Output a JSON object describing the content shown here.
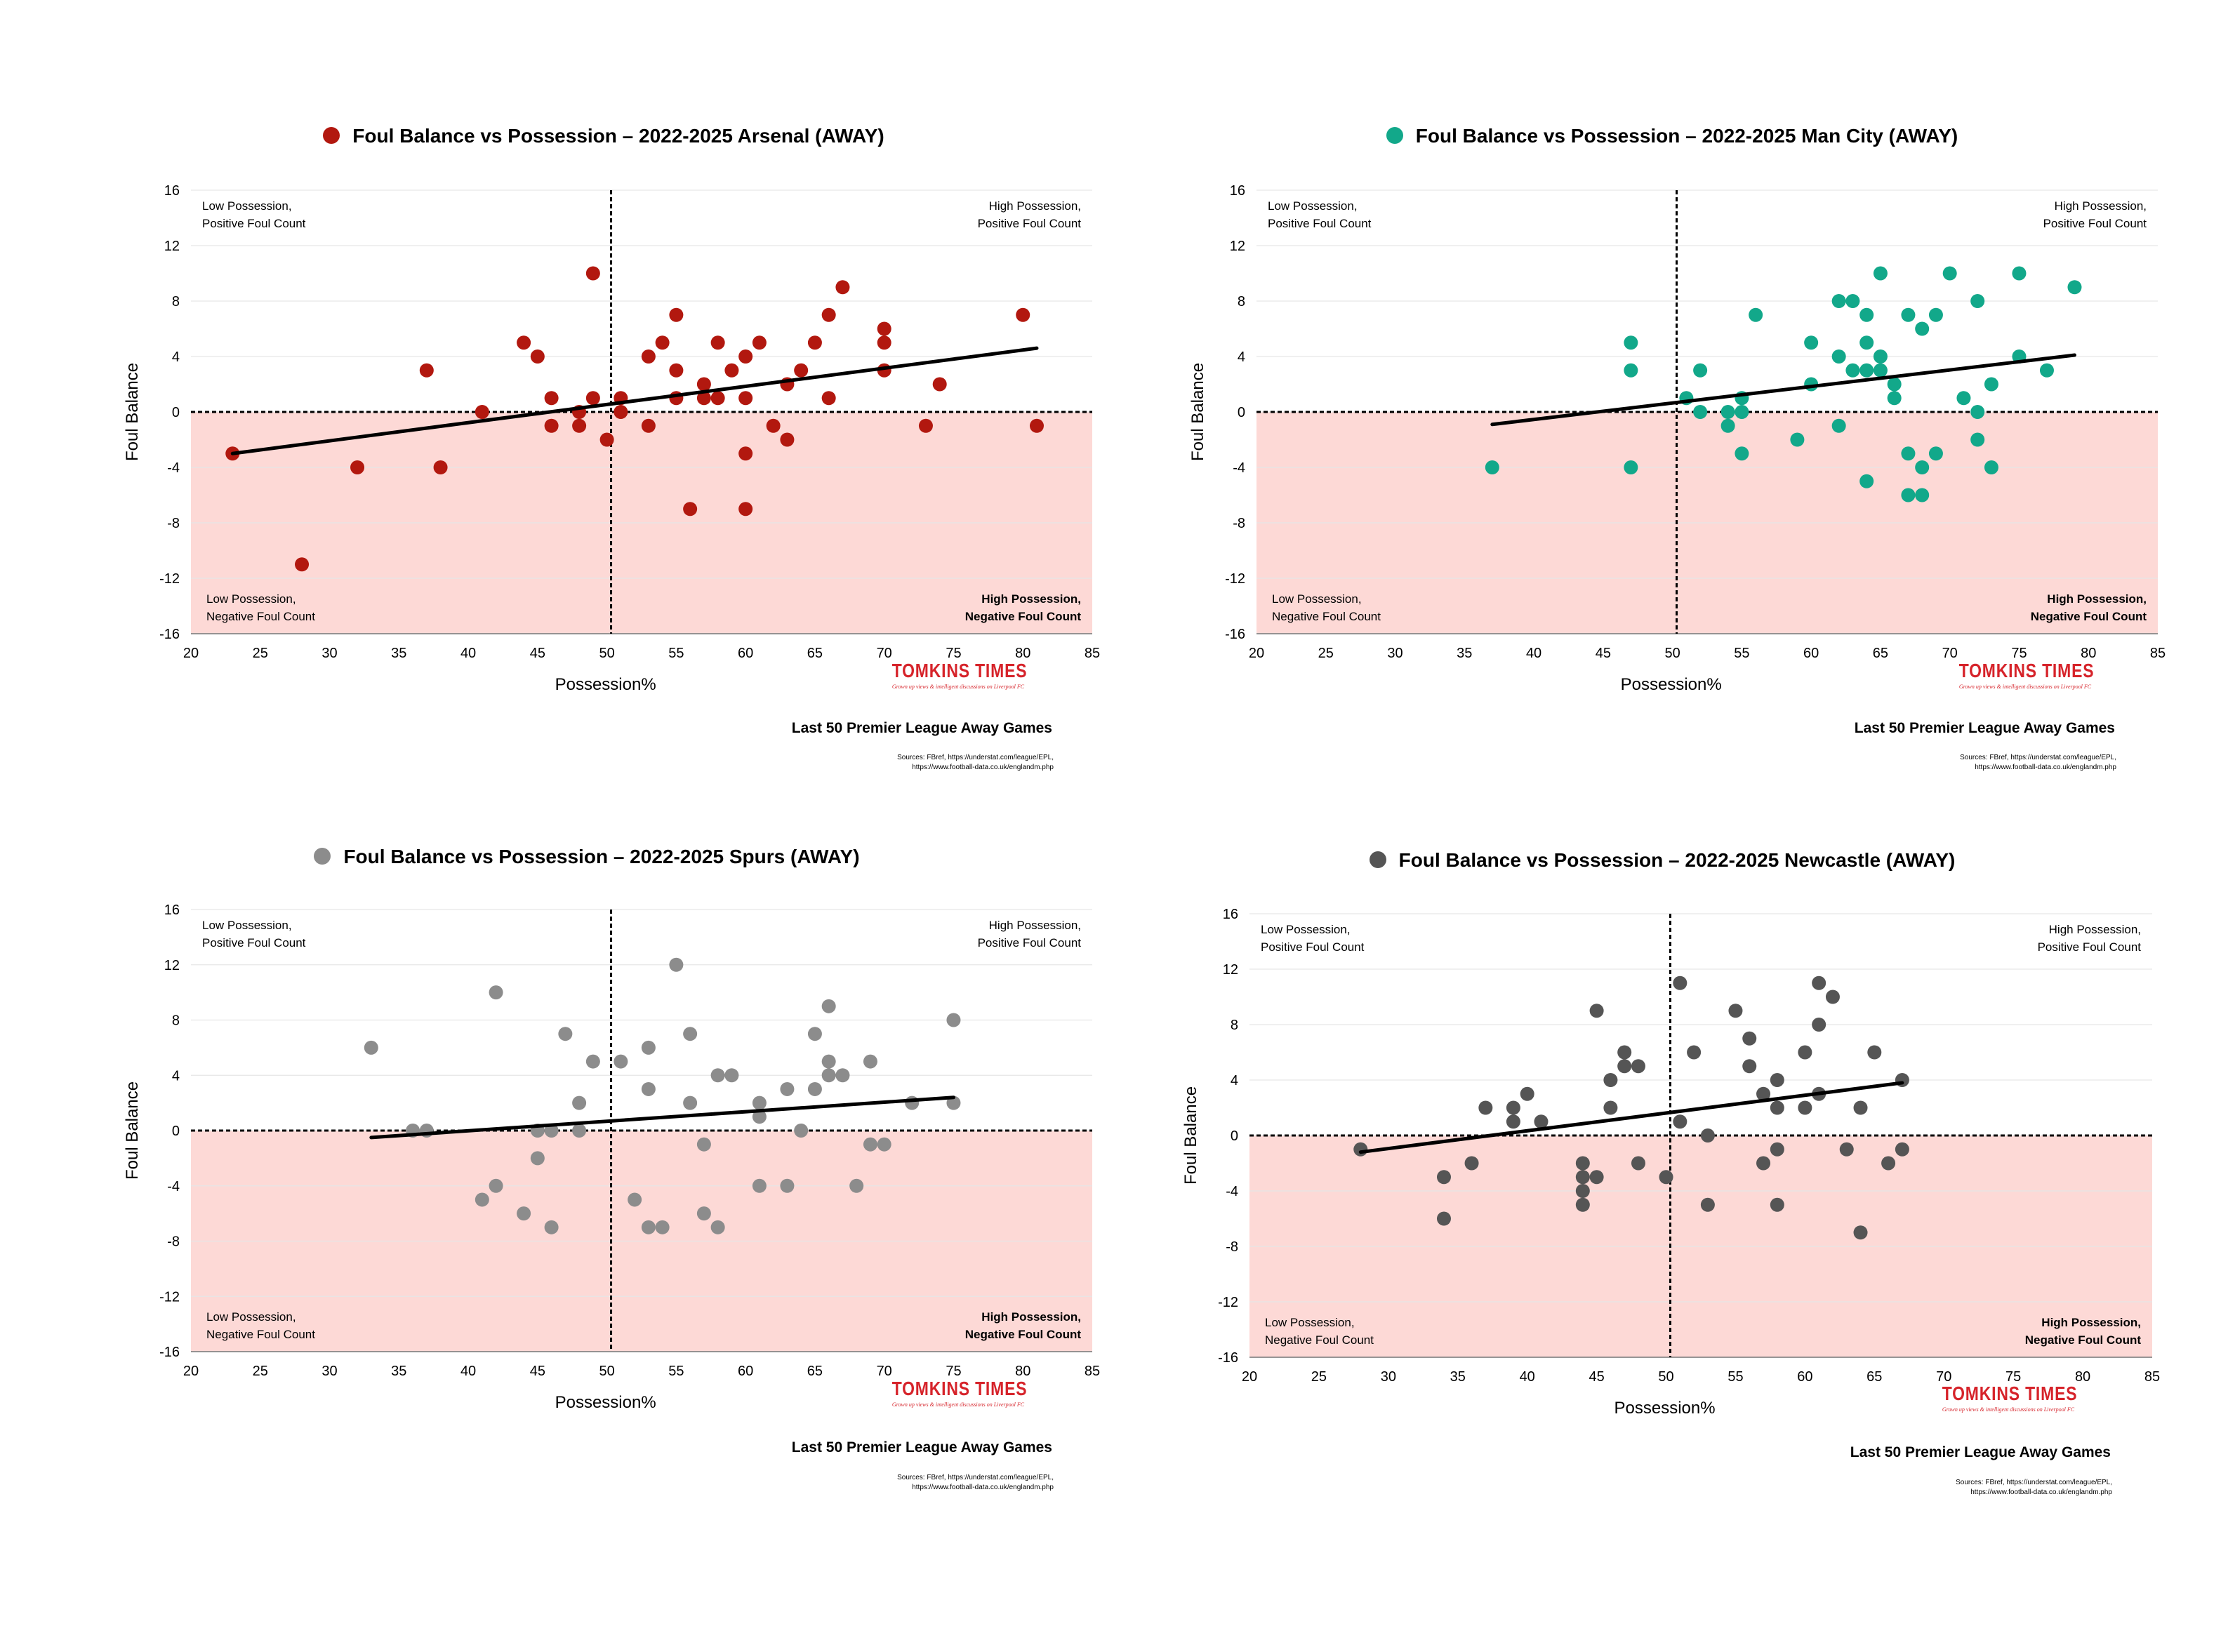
{
  "common": {
    "xlabel": "Possession%",
    "ylabel": "Foul Balance",
    "subtitle": "Last 50 Premier League Away Games",
    "sources_line1": "Sources: FBref, https://understat.com/league/EPL,",
    "sources_line2": "https://www.football-data.co.uk/englandm.php",
    "logo_text": "TOMKINS TIMES",
    "logo_tagline": "Grown up views & intelligent discussions on Liverpool FC",
    "quadrants": {
      "top_left": [
        "Low Possession,",
        "Positive Foul Count"
      ],
      "top_right": [
        "High Possession,",
        "Positive Foul Count"
      ],
      "bottom_left": [
        "Low Possession,",
        "Negative Foul Count"
      ],
      "bottom_right": [
        "High Possession,",
        "Negative Foul Count"
      ]
    },
    "colors": {
      "negative_zone": "#fdd9d6",
      "trend_line": "#000000",
      "logo": "#d6232a"
    }
  },
  "chart_data": [
    {
      "type": "scatter",
      "title": "Foul Balance vs Possession – 2022-2025 Arsenal (AWAY)",
      "color": "#b2180f",
      "xlim": [
        20,
        85
      ],
      "ylim": [
        -16,
        16
      ],
      "xticks": [
        20,
        25,
        30,
        35,
        40,
        45,
        50,
        55,
        60,
        65,
        70,
        75,
        80,
        85
      ],
      "yticks": [
        16,
        12,
        8,
        4,
        0,
        -4,
        -8,
        -12,
        -16
      ],
      "vline_x": 50.3,
      "trend": [
        [
          23,
          -3
        ],
        [
          81,
          4.6
        ]
      ],
      "points": [
        [
          23,
          -3
        ],
        [
          28,
          -11
        ],
        [
          32,
          -4
        ],
        [
          37,
          3
        ],
        [
          38,
          -4
        ],
        [
          41,
          0
        ],
        [
          44,
          5
        ],
        [
          45,
          4
        ],
        [
          46,
          1
        ],
        [
          46,
          -1
        ],
        [
          48,
          -1
        ],
        [
          48,
          0
        ],
        [
          49,
          10
        ],
        [
          49,
          1
        ],
        [
          50,
          -2
        ],
        [
          51,
          1
        ],
        [
          51,
          0
        ],
        [
          53,
          4
        ],
        [
          53,
          -1
        ],
        [
          54,
          5
        ],
        [
          55,
          7
        ],
        [
          55,
          3
        ],
        [
          55,
          1
        ],
        [
          56,
          -7
        ],
        [
          57,
          2
        ],
        [
          57,
          1
        ],
        [
          58,
          5
        ],
        [
          58,
          1
        ],
        [
          59,
          3
        ],
        [
          60,
          4
        ],
        [
          60,
          1
        ],
        [
          60,
          -3
        ],
        [
          60,
          -7
        ],
        [
          61,
          5
        ],
        [
          62,
          -1
        ],
        [
          63,
          2
        ],
        [
          63,
          -2
        ],
        [
          64,
          3
        ],
        [
          65,
          5
        ],
        [
          66,
          7
        ],
        [
          66,
          1
        ],
        [
          67,
          9
        ],
        [
          70,
          6
        ],
        [
          70,
          5
        ],
        [
          70,
          3
        ],
        [
          73,
          -1
        ],
        [
          74,
          2
        ],
        [
          80,
          7
        ],
        [
          81,
          -1
        ]
      ]
    },
    {
      "type": "scatter",
      "title": "Foul Balance vs Possession – 2022-2025 Man City (AWAY)",
      "color": "#12a88a",
      "xlim": [
        20,
        85
      ],
      "ylim": [
        -16,
        16
      ],
      "xticks": [
        20,
        25,
        30,
        35,
        40,
        45,
        50,
        55,
        60,
        65,
        70,
        75,
        80,
        85
      ],
      "yticks": [
        16,
        12,
        8,
        4,
        0,
        -4,
        -8,
        -12,
        -16
      ],
      "vline_x": 50.3,
      "trend": [
        [
          37,
          -0.9
        ],
        [
          79,
          4.1
        ]
      ],
      "points": [
        [
          37,
          -4
        ],
        [
          47,
          5
        ],
        [
          47,
          3
        ],
        [
          47,
          -4
        ],
        [
          51,
          1
        ],
        [
          52,
          3
        ],
        [
          52,
          0
        ],
        [
          54,
          0
        ],
        [
          54,
          -1
        ],
        [
          55,
          1
        ],
        [
          55,
          0
        ],
        [
          55,
          -3
        ],
        [
          56,
          7
        ],
        [
          59,
          -2
        ],
        [
          60,
          5
        ],
        [
          60,
          2
        ],
        [
          62,
          8
        ],
        [
          62,
          4
        ],
        [
          62,
          -1
        ],
        [
          63,
          8
        ],
        [
          63,
          3
        ],
        [
          64,
          7
        ],
        [
          64,
          5
        ],
        [
          64,
          3
        ],
        [
          64,
          -5
        ],
        [
          65,
          10
        ],
        [
          65,
          4
        ],
        [
          65,
          3
        ],
        [
          66,
          2
        ],
        [
          66,
          1
        ],
        [
          67,
          7
        ],
        [
          67,
          -3
        ],
        [
          67,
          -6
        ],
        [
          68,
          6
        ],
        [
          68,
          -4
        ],
        [
          68,
          -6
        ],
        [
          69,
          7
        ],
        [
          69,
          -3
        ],
        [
          70,
          10
        ],
        [
          71,
          1
        ],
        [
          72,
          8
        ],
        [
          72,
          0
        ],
        [
          72,
          -2
        ],
        [
          73,
          2
        ],
        [
          73,
          -4
        ],
        [
          75,
          10
        ],
        [
          75,
          4
        ],
        [
          77,
          3
        ],
        [
          79,
          9
        ]
      ]
    },
    {
      "type": "scatter",
      "title": "Foul Balance vs Possession – 2022-2025 Spurs (AWAY)",
      "color": "#8c8c8c",
      "xlim": [
        20,
        85
      ],
      "ylim": [
        -16,
        16
      ],
      "xticks": [
        20,
        25,
        30,
        35,
        40,
        45,
        50,
        55,
        60,
        65,
        70,
        75,
        80,
        85
      ],
      "yticks": [
        16,
        12,
        8,
        4,
        0,
        -4,
        -8,
        -12,
        -16
      ],
      "vline_x": 50.3,
      "trend": [
        [
          33,
          -0.5
        ],
        [
          75,
          2.4
        ]
      ],
      "points": [
        [
          33,
          6
        ],
        [
          36,
          0
        ],
        [
          37,
          0
        ],
        [
          41,
          -5
        ],
        [
          42,
          10
        ],
        [
          42,
          -4
        ],
        [
          44,
          -6
        ],
        [
          45,
          0
        ],
        [
          45,
          -2
        ],
        [
          46,
          0
        ],
        [
          46,
          -7
        ],
        [
          47,
          7
        ],
        [
          48,
          2
        ],
        [
          48,
          0
        ],
        [
          49,
          5
        ],
        [
          51,
          5
        ],
        [
          52,
          -5
        ],
        [
          53,
          6
        ],
        [
          53,
          3
        ],
        [
          53,
          -7
        ],
        [
          54,
          -7
        ],
        [
          55,
          12
        ],
        [
          56,
          7
        ],
        [
          56,
          2
        ],
        [
          57,
          -1
        ],
        [
          57,
          -6
        ],
        [
          58,
          4
        ],
        [
          58,
          -7
        ],
        [
          59,
          4
        ],
        [
          61,
          2
        ],
        [
          61,
          1
        ],
        [
          61,
          -4
        ],
        [
          63,
          3
        ],
        [
          63,
          -4
        ],
        [
          64,
          0
        ],
        [
          65,
          7
        ],
        [
          65,
          3
        ],
        [
          66,
          9
        ],
        [
          66,
          5
        ],
        [
          66,
          4
        ],
        [
          67,
          4
        ],
        [
          68,
          -4
        ],
        [
          69,
          5
        ],
        [
          69,
          -1
        ],
        [
          70,
          -1
        ],
        [
          72,
          2
        ],
        [
          75,
          8
        ],
        [
          75,
          2
        ]
      ]
    },
    {
      "type": "scatter",
      "title": "Foul Balance vs Possession – 2022-2025 Newcastle (AWAY)",
      "color": "#555555",
      "xlim": [
        20,
        85
      ],
      "ylim": [
        -16,
        16
      ],
      "xticks": [
        20,
        25,
        30,
        35,
        40,
        45,
        50,
        55,
        60,
        65,
        70,
        75,
        80,
        85
      ],
      "yticks": [
        16,
        12,
        8,
        4,
        0,
        -4,
        -8,
        -12,
        -16
      ],
      "vline_x": 50.3,
      "trend": [
        [
          28,
          -1.2
        ],
        [
          67,
          3.8
        ]
      ],
      "points": [
        [
          28,
          -1
        ],
        [
          34,
          -3
        ],
        [
          34,
          -6
        ],
        [
          36,
          -2
        ],
        [
          37,
          2
        ],
        [
          39,
          2
        ],
        [
          39,
          1
        ],
        [
          40,
          3
        ],
        [
          41,
          1
        ],
        [
          44,
          -2
        ],
        [
          44,
          -3
        ],
        [
          44,
          -4
        ],
        [
          44,
          -5
        ],
        [
          45,
          9
        ],
        [
          45,
          -3
        ],
        [
          46,
          4
        ],
        [
          46,
          2
        ],
        [
          47,
          6
        ],
        [
          47,
          5
        ],
        [
          48,
          5
        ],
        [
          48,
          -2
        ],
        [
          50,
          -3
        ],
        [
          51,
          11
        ],
        [
          51,
          1
        ],
        [
          52,
          6
        ],
        [
          53,
          0
        ],
        [
          53,
          -5
        ],
        [
          55,
          9
        ],
        [
          56,
          7
        ],
        [
          56,
          5
        ],
        [
          57,
          3
        ],
        [
          57,
          -2
        ],
        [
          58,
          4
        ],
        [
          58,
          2
        ],
        [
          58,
          -1
        ],
        [
          58,
          -5
        ],
        [
          60,
          6
        ],
        [
          60,
          2
        ],
        [
          61,
          11
        ],
        [
          61,
          8
        ],
        [
          61,
          3
        ],
        [
          62,
          10
        ],
        [
          63,
          -1
        ],
        [
          64,
          2
        ],
        [
          64,
          -7
        ],
        [
          65,
          6
        ],
        [
          66,
          -2
        ],
        [
          67,
          4
        ],
        [
          67,
          -1
        ]
      ]
    }
  ]
}
